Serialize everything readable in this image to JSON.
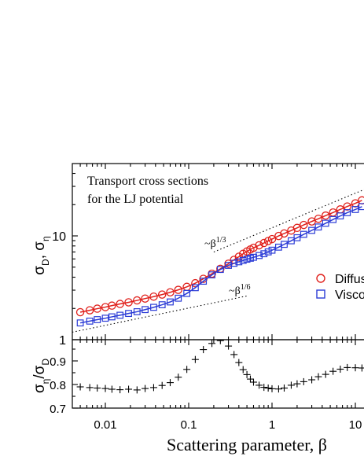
{
  "chart_data": [
    {
      "type": "scatter",
      "title": "",
      "annotation": [
        "Transport cross sections",
        "for the LJ potential"
      ],
      "xlabel": "",
      "ylabel": "σD, ση",
      "xscale": "log",
      "yscale": "log",
      "xlim": [
        0.004,
        13
      ],
      "ylim": [
        1,
        50
      ],
      "x_ticks": [
        0.01,
        0.1,
        1,
        10
      ],
      "x_tick_labels": [
        "0.01",
        "0.1",
        "1",
        "10"
      ],
      "y_ticks": [
        1,
        10
      ],
      "y_tick_labels": [
        "1",
        "10"
      ],
      "grid": false,
      "legend_position": "right",
      "slope_labels": [
        "~β1/3",
        "~β1/6"
      ],
      "series": [
        {
          "name": "Diffusion",
          "marker": "circle",
          "color": "#e0201b",
          "x": [
            0.005,
            0.0065,
            0.008,
            0.01,
            0.012,
            0.015,
            0.019,
            0.024,
            0.03,
            0.038,
            0.048,
            0.06,
            0.075,
            0.095,
            0.12,
            0.15,
            0.19,
            0.24,
            0.3,
            0.35,
            0.4,
            0.45,
            0.5,
            0.55,
            0.6,
            0.7,
            0.8,
            0.9,
            1.0,
            1.2,
            1.4,
            1.7,
            2.0,
            2.4,
            3.0,
            3.6,
            4.4,
            5.4,
            6.6,
            8.0,
            10.0,
            12.0
          ],
          "y": [
            1.84,
            1.92,
            1.99,
            2.06,
            2.13,
            2.21,
            2.29,
            2.39,
            2.49,
            2.6,
            2.72,
            2.86,
            3.02,
            3.23,
            3.5,
            3.86,
            4.32,
            4.82,
            5.4,
            5.88,
            6.3,
            6.72,
            7.08,
            7.4,
            7.68,
            8.12,
            8.54,
            8.93,
            9.31,
            9.98,
            10.56,
            11.26,
            11.95,
            12.75,
            13.78,
            14.62,
            15.7,
            16.8,
            18.0,
            19.2,
            20.6,
            22.0
          ]
        },
        {
          "name": "Viscosity",
          "marker": "square",
          "color": "#2b3bd6",
          "x": [
            0.005,
            0.0065,
            0.008,
            0.01,
            0.012,
            0.015,
            0.019,
            0.024,
            0.03,
            0.038,
            0.048,
            0.06,
            0.075,
            0.095,
            0.12,
            0.15,
            0.19,
            0.24,
            0.3,
            0.35,
            0.4,
            0.45,
            0.5,
            0.55,
            0.6,
            0.7,
            0.8,
            0.9,
            1.0,
            1.2,
            1.4,
            1.7,
            2.0,
            2.4,
            3.0,
            3.6,
            4.4,
            5.4,
            6.6,
            8.0,
            10.0,
            12.0
          ],
          "y": [
            1.45,
            1.51,
            1.56,
            1.61,
            1.66,
            1.72,
            1.79,
            1.86,
            1.95,
            2.05,
            2.17,
            2.31,
            2.51,
            2.79,
            3.17,
            3.66,
            4.21,
            4.75,
            5.2,
            5.45,
            5.63,
            5.8,
            5.96,
            6.09,
            6.22,
            6.47,
            6.73,
            7.01,
            7.28,
            7.79,
            8.29,
            8.97,
            9.6,
            10.35,
            11.3,
            12.18,
            13.24,
            14.38,
            15.57,
            16.75,
            17.95,
            19.15
          ]
        }
      ]
    },
    {
      "type": "scatter",
      "title": "",
      "xlabel": "Scattering parameter, β",
      "ylabel": "ση/σD",
      "xscale": "log",
      "xlim": [
        0.004,
        13
      ],
      "ylim": [
        0.7,
        1.0
      ],
      "x_ticks": [
        0.01,
        0.1,
        1,
        10
      ],
      "x_tick_labels": [
        "0.01",
        "0.1",
        "1",
        "10"
      ],
      "y_ticks": [
        0.7,
        0.8,
        0.9
      ],
      "y_tick_labels": [
        "0.7",
        "0.8",
        "0.9"
      ],
      "grid": false,
      "series": [
        {
          "marker": "plus",
          "color": "#000000",
          "x": [
            0.005,
            0.0065,
            0.008,
            0.01,
            0.012,
            0.015,
            0.019,
            0.024,
            0.03,
            0.038,
            0.048,
            0.06,
            0.075,
            0.095,
            0.12,
            0.15,
            0.19,
            0.24,
            0.3,
            0.35,
            0.4,
            0.45,
            0.5,
            0.55,
            0.6,
            0.7,
            0.8,
            0.9,
            1.0,
            1.2,
            1.4,
            1.7,
            2.0,
            2.4,
            3.0,
            3.6,
            4.4,
            5.4,
            6.6,
            8.0,
            10.0,
            12.0
          ],
          "y": [
            0.79,
            0.787,
            0.785,
            0.783,
            0.78,
            0.778,
            0.78,
            0.777,
            0.783,
            0.787,
            0.796,
            0.808,
            0.831,
            0.864,
            0.906,
            0.948,
            0.974,
            0.986,
            0.963,
            0.927,
            0.893,
            0.863,
            0.842,
            0.823,
            0.81,
            0.797,
            0.788,
            0.785,
            0.782,
            0.781,
            0.785,
            0.797,
            0.803,
            0.812,
            0.82,
            0.833,
            0.843,
            0.856,
            0.865,
            0.872,
            0.871,
            0.87
          ]
        }
      ]
    }
  ],
  "colors": {
    "diffusion": "#e0201b",
    "viscosity": "#2b3bd6",
    "ratio": "#000000",
    "axis": "#000000"
  }
}
